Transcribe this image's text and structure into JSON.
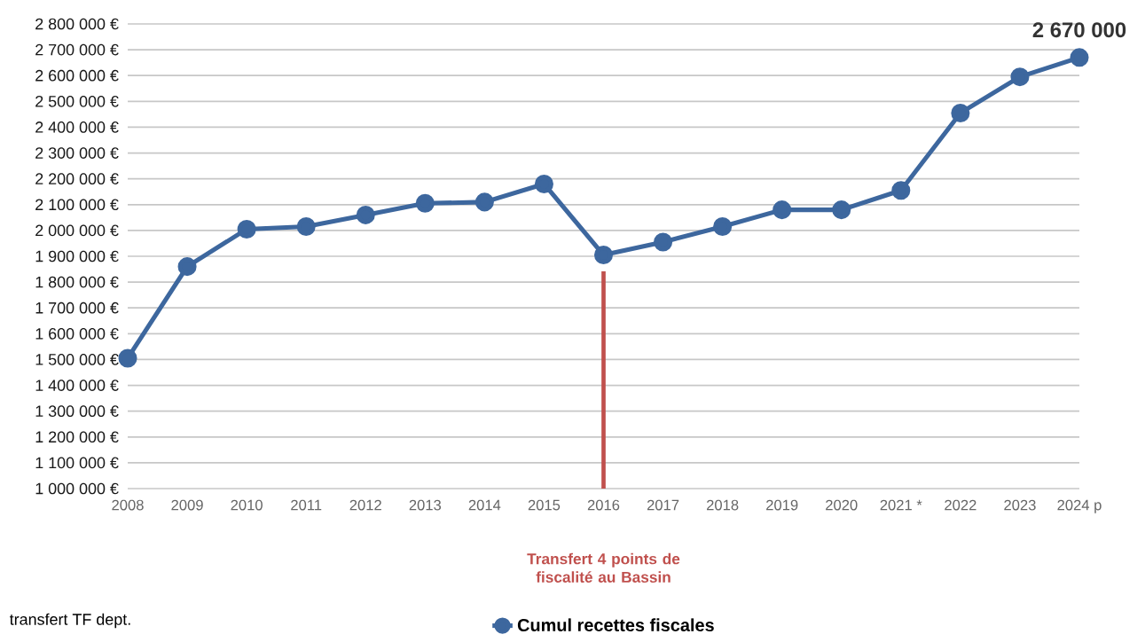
{
  "chart_data": {
    "type": "line",
    "categories": [
      "2008",
      "2009",
      "2010",
      "2011",
      "2012",
      "2013",
      "2014",
      "2015",
      "2016",
      "2017",
      "2018",
      "2019",
      "2020",
      "2021 *",
      "2022",
      "2023",
      "2024 p"
    ],
    "series": [
      {
        "name": "Cumul recettes fiscales",
        "color": "#3d679e",
        "values": [
          1505000,
          1860000,
          2005000,
          2015000,
          2060000,
          2105000,
          2110000,
          2180000,
          1905000,
          1955000,
          2015000,
          2080000,
          2080000,
          2155000,
          2455000,
          2595000,
          2670000
        ],
        "value_labels": [
          null,
          null,
          null,
          null,
          null,
          null,
          null,
          null,
          null,
          null,
          null,
          null,
          null,
          null,
          null,
          null,
          "2 670 000"
        ]
      }
    ],
    "ylim": [
      1000000,
      2800000
    ],
    "yticks": [
      {
        "value": 1000000,
        "label": "1 000 000 €"
      },
      {
        "value": 1100000,
        "label": "1 100 000 €"
      },
      {
        "value": 1200000,
        "label": "1 200 000 €"
      },
      {
        "value": 1300000,
        "label": "1 300 000 €"
      },
      {
        "value": 1400000,
        "label": "1 400 000 €"
      },
      {
        "value": 1500000,
        "label": "1 500 000 €"
      },
      {
        "value": 1600000,
        "label": "1 600 000 €"
      },
      {
        "value": 1700000,
        "label": "1 700 000 €"
      },
      {
        "value": 1800000,
        "label": "1 800 000 €"
      },
      {
        "value": 1900000,
        "label": "1 900 000 €"
      },
      {
        "value": 2000000,
        "label": "2 000 000 €"
      },
      {
        "value": 2100000,
        "label": "2 100 000 €"
      },
      {
        "value": 2200000,
        "label": "2 200 000 €"
      },
      {
        "value": 2300000,
        "label": "2 300 000 €"
      },
      {
        "value": 2400000,
        "label": "2 400 000 €"
      },
      {
        "value": 2500000,
        "label": "2 500 000 €"
      },
      {
        "value": 2600000,
        "label": "2 600 000 €"
      },
      {
        "value": 2700000,
        "label": "2 700 000 €"
      },
      {
        "value": 2800000,
        "label": "2 800 000 €"
      }
    ],
    "ref_lines": [
      {
        "axis": "x",
        "value": "2016",
        "label": "Transfert 4 points de fiscalité au Bassin",
        "color": "#c0504d"
      }
    ],
    "annotations": [
      "transfert TF dept."
    ],
    "grid": "y",
    "legend": "bottom",
    "marker": "circle",
    "line_style": "solid"
  }
}
